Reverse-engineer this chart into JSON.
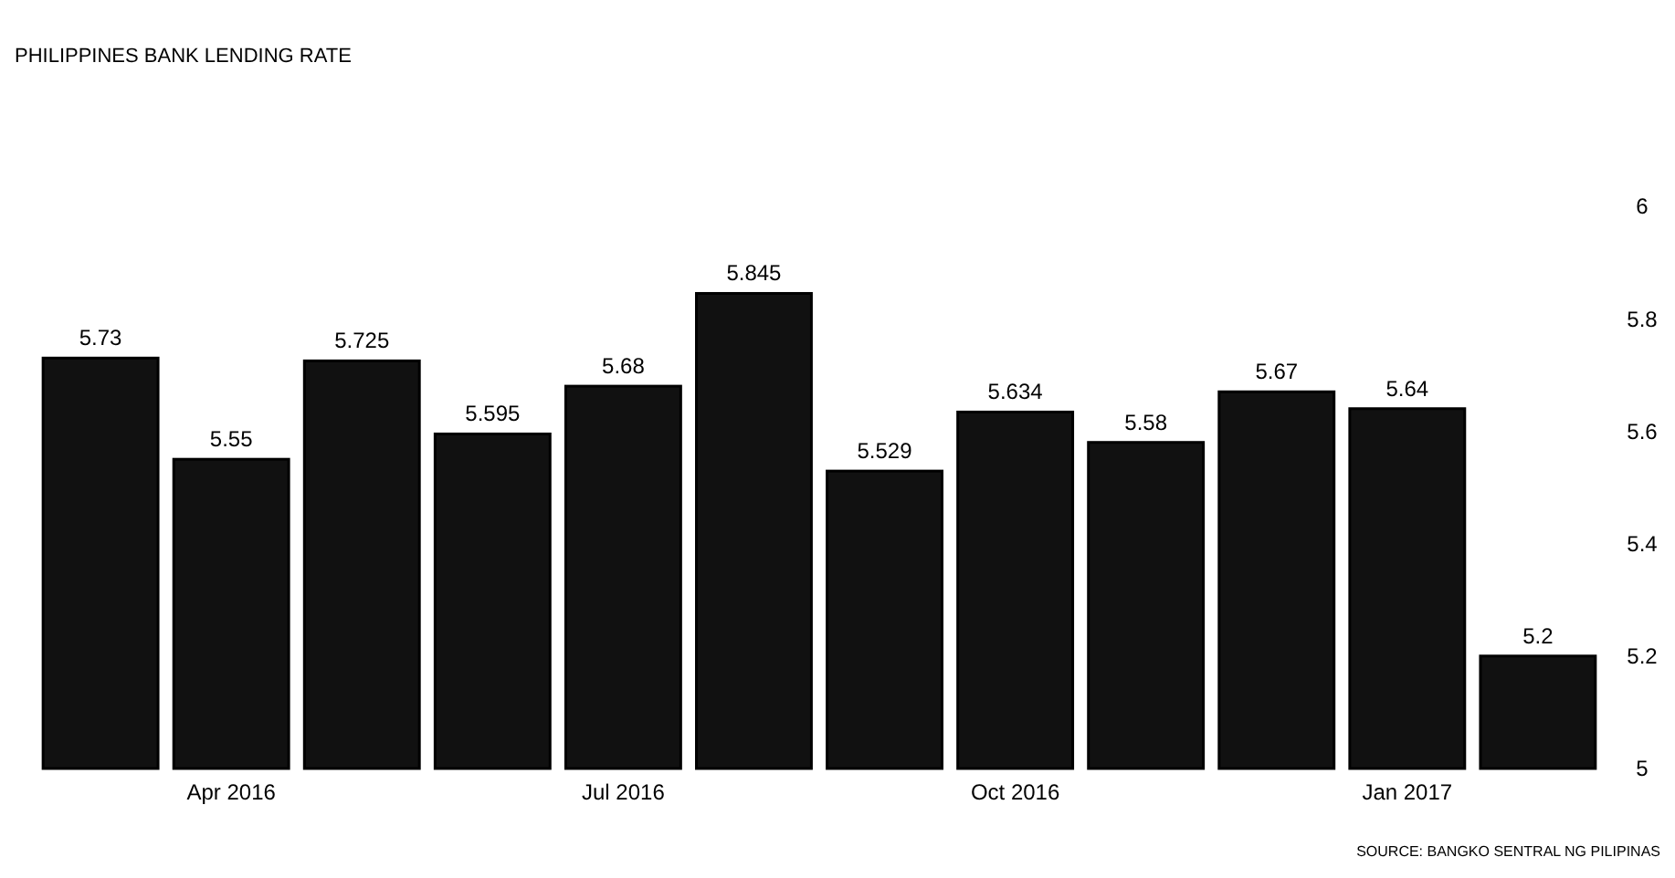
{
  "chart_data": {
    "type": "bar",
    "title": "PHILIPPINES BANK LENDING RATE",
    "categories": [
      null,
      "Apr 2016",
      null,
      null,
      "Jul 2016",
      null,
      null,
      "Oct 2016",
      null,
      null,
      "Jan 2017",
      null
    ],
    "values": [
      5.73,
      5.55,
      5.725,
      5.595,
      5.68,
      5.845,
      5.529,
      5.634,
      5.58,
      5.67,
      5.64,
      5.2
    ],
    "color": "#111111",
    "ylim": [
      5,
      6
    ],
    "yticks": [
      5,
      5.2,
      5.4,
      5.6,
      5.8,
      6
    ],
    "data_labels": true,
    "grid": false,
    "annotations": [
      "SOURCE: BANGKO SENTRAL NG PILIPINAS"
    ]
  }
}
